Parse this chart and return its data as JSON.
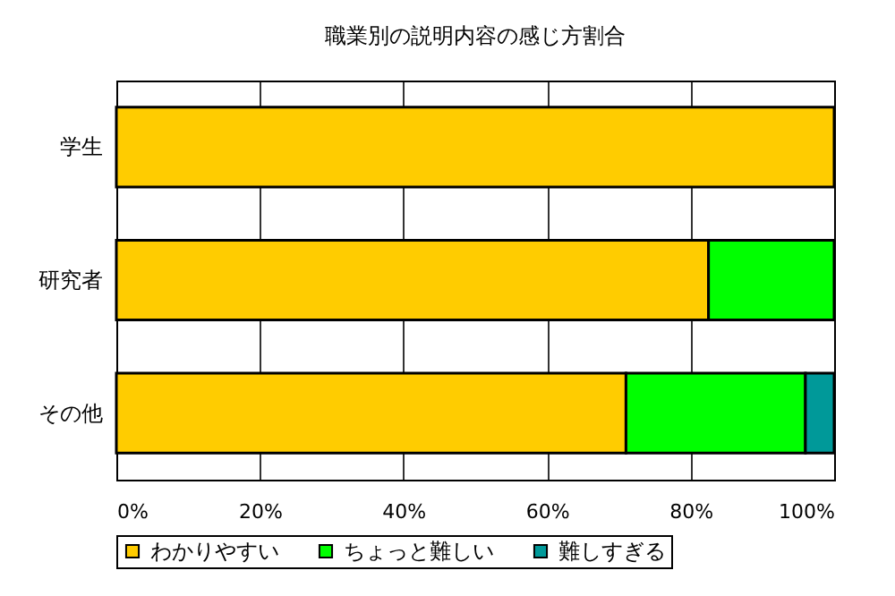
{
  "chart_data": {
    "type": "bar",
    "orientation": "horizontal",
    "stacked": true,
    "title": "職業別の説明内容の感じ方割合",
    "categories": [
      "学生",
      "研究者",
      "その他"
    ],
    "series": [
      {
        "name": "わかりやすい",
        "color": "#ffcc00",
        "values": [
          100,
          82.5,
          71
        ]
      },
      {
        "name": "ちょっと難しい",
        "color": "#00ff00",
        "values": [
          null,
          17.5,
          25
        ]
      },
      {
        "name": "難しすぎる",
        "color": "#009999",
        "values": [
          null,
          null,
          4
        ]
      }
    ],
    "xlim": [
      0,
      100
    ],
    "xticks": [
      {
        "value": 0,
        "label": "0%"
      },
      {
        "value": 20,
        "label": "20%"
      },
      {
        "value": 40,
        "label": "40%"
      },
      {
        "value": 60,
        "label": "60%"
      },
      {
        "value": 80,
        "label": "80%"
      },
      {
        "value": 100,
        "label": "100%"
      }
    ],
    "grid": "x",
    "legend": "bottom"
  }
}
